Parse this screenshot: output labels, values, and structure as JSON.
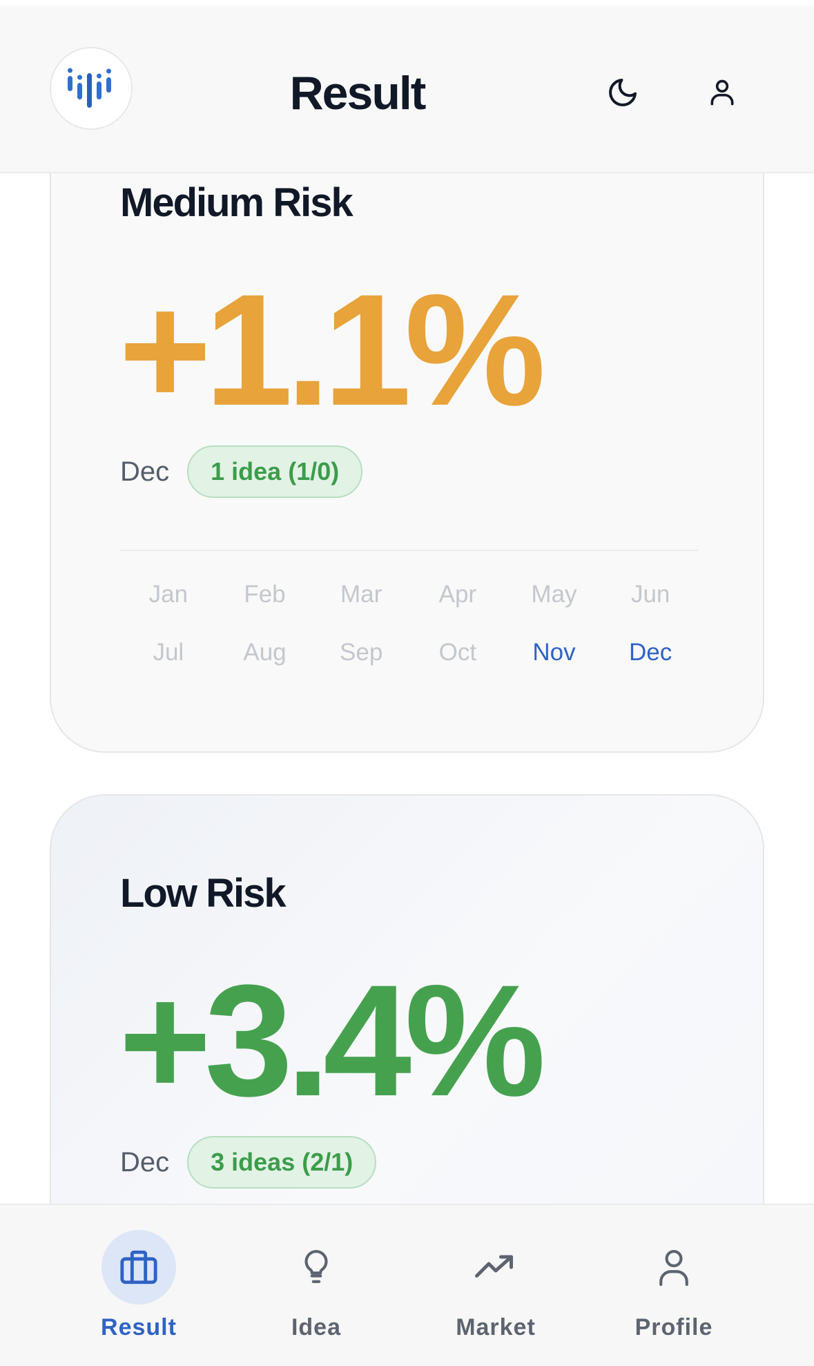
{
  "header": {
    "title": "Result",
    "logo_icon": "bars-logo-icon",
    "theme_icon": "moon-icon",
    "account_icon": "user-icon"
  },
  "cards": [
    {
      "title": "Medium Risk",
      "value": "+1.1%",
      "value_color": "#e8a33a",
      "month": "Dec",
      "badge": "1 idea (1/0)",
      "months": [
        "Jan",
        "Feb",
        "Mar",
        "Apr",
        "May",
        "Jun",
        "Jul",
        "Aug",
        "Sep",
        "Oct",
        "Nov",
        "Dec"
      ],
      "active_months": [
        "Nov",
        "Dec"
      ]
    },
    {
      "title": "Low Risk",
      "value": "+3.4%",
      "value_color": "#46a14f",
      "month": "Dec",
      "badge": "3 ideas (2/1)"
    }
  ],
  "nav": [
    {
      "label": "Result",
      "icon": "briefcase-icon",
      "active": true
    },
    {
      "label": "Idea",
      "icon": "lightbulb-icon",
      "active": false
    },
    {
      "label": "Market",
      "icon": "trending-up-icon",
      "active": false
    },
    {
      "label": "Profile",
      "icon": "profile-icon",
      "active": false
    }
  ],
  "colors": {
    "accent": "#2f62c4",
    "badge_bg": "#e2f2e5",
    "badge_text": "#3c9c4a"
  }
}
